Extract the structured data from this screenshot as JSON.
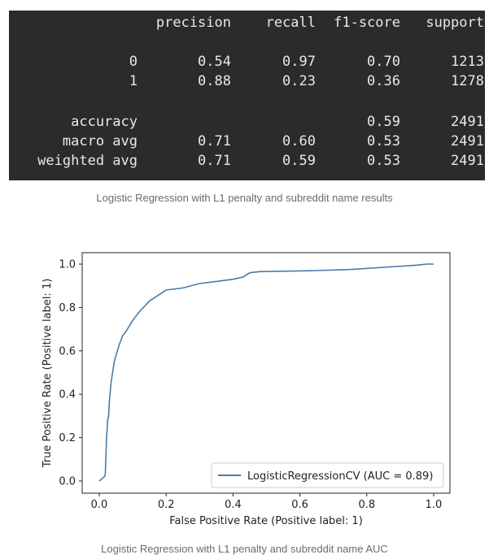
{
  "report": {
    "headers": [
      "precision",
      "recall",
      "f1-score",
      "support"
    ],
    "rows": [
      {
        "label": "0",
        "precision": "0.54",
        "recall": "0.97",
        "f1": "0.70",
        "support": "1213"
      },
      {
        "label": "1",
        "precision": "0.88",
        "recall": "0.23",
        "f1": "0.36",
        "support": "1278"
      },
      {
        "label": "accuracy",
        "precision": "",
        "recall": "",
        "f1": "0.59",
        "support": "2491"
      },
      {
        "label": "macro avg",
        "precision": "0.71",
        "recall": "0.60",
        "f1": "0.53",
        "support": "2491"
      },
      {
        "label": "weighted avg",
        "precision": "0.71",
        "recall": "0.59",
        "f1": "0.53",
        "support": "2491"
      }
    ]
  },
  "captions": {
    "table": "Logistic Regression with L1 penalty and subreddit name results",
    "chart": "Logistic Regression with L1 penalty and subreddit name AUC"
  },
  "chart_data": {
    "type": "line",
    "title": "",
    "xlabel": "False Positive Rate (Positive label: 1)",
    "ylabel": "True Positive Rate (Positive label: 1)",
    "xlim": [
      0.0,
      1.0
    ],
    "ylim": [
      0.0,
      1.0
    ],
    "xticks": [
      "0.0",
      "0.2",
      "0.4",
      "0.6",
      "0.8",
      "1.0"
    ],
    "yticks": [
      "0.0",
      "0.2",
      "0.4",
      "0.6",
      "0.8",
      "1.0"
    ],
    "grid": false,
    "legend_position": "lower-right",
    "series": [
      {
        "name": "LogisticRegressionCV (AUC = 0.89)",
        "color": "#4a7ba6",
        "x": [
          0.0,
          0.015,
          0.018,
          0.02,
          0.022,
          0.025,
          0.028,
          0.03,
          0.035,
          0.04,
          0.045,
          0.05,
          0.06,
          0.07,
          0.08,
          0.1,
          0.12,
          0.15,
          0.18,
          0.2,
          0.25,
          0.3,
          0.35,
          0.4,
          0.43,
          0.45,
          0.48,
          0.55,
          0.65,
          0.75,
          0.85,
          0.95,
          0.98,
          1.0
        ],
        "y": [
          0.0,
          0.02,
          0.03,
          0.12,
          0.2,
          0.28,
          0.3,
          0.36,
          0.45,
          0.5,
          0.55,
          0.58,
          0.63,
          0.67,
          0.69,
          0.74,
          0.78,
          0.83,
          0.86,
          0.88,
          0.89,
          0.91,
          0.92,
          0.93,
          0.94,
          0.96,
          0.965,
          0.967,
          0.97,
          0.975,
          0.985,
          0.995,
          1.0,
          1.0
        ]
      }
    ]
  }
}
